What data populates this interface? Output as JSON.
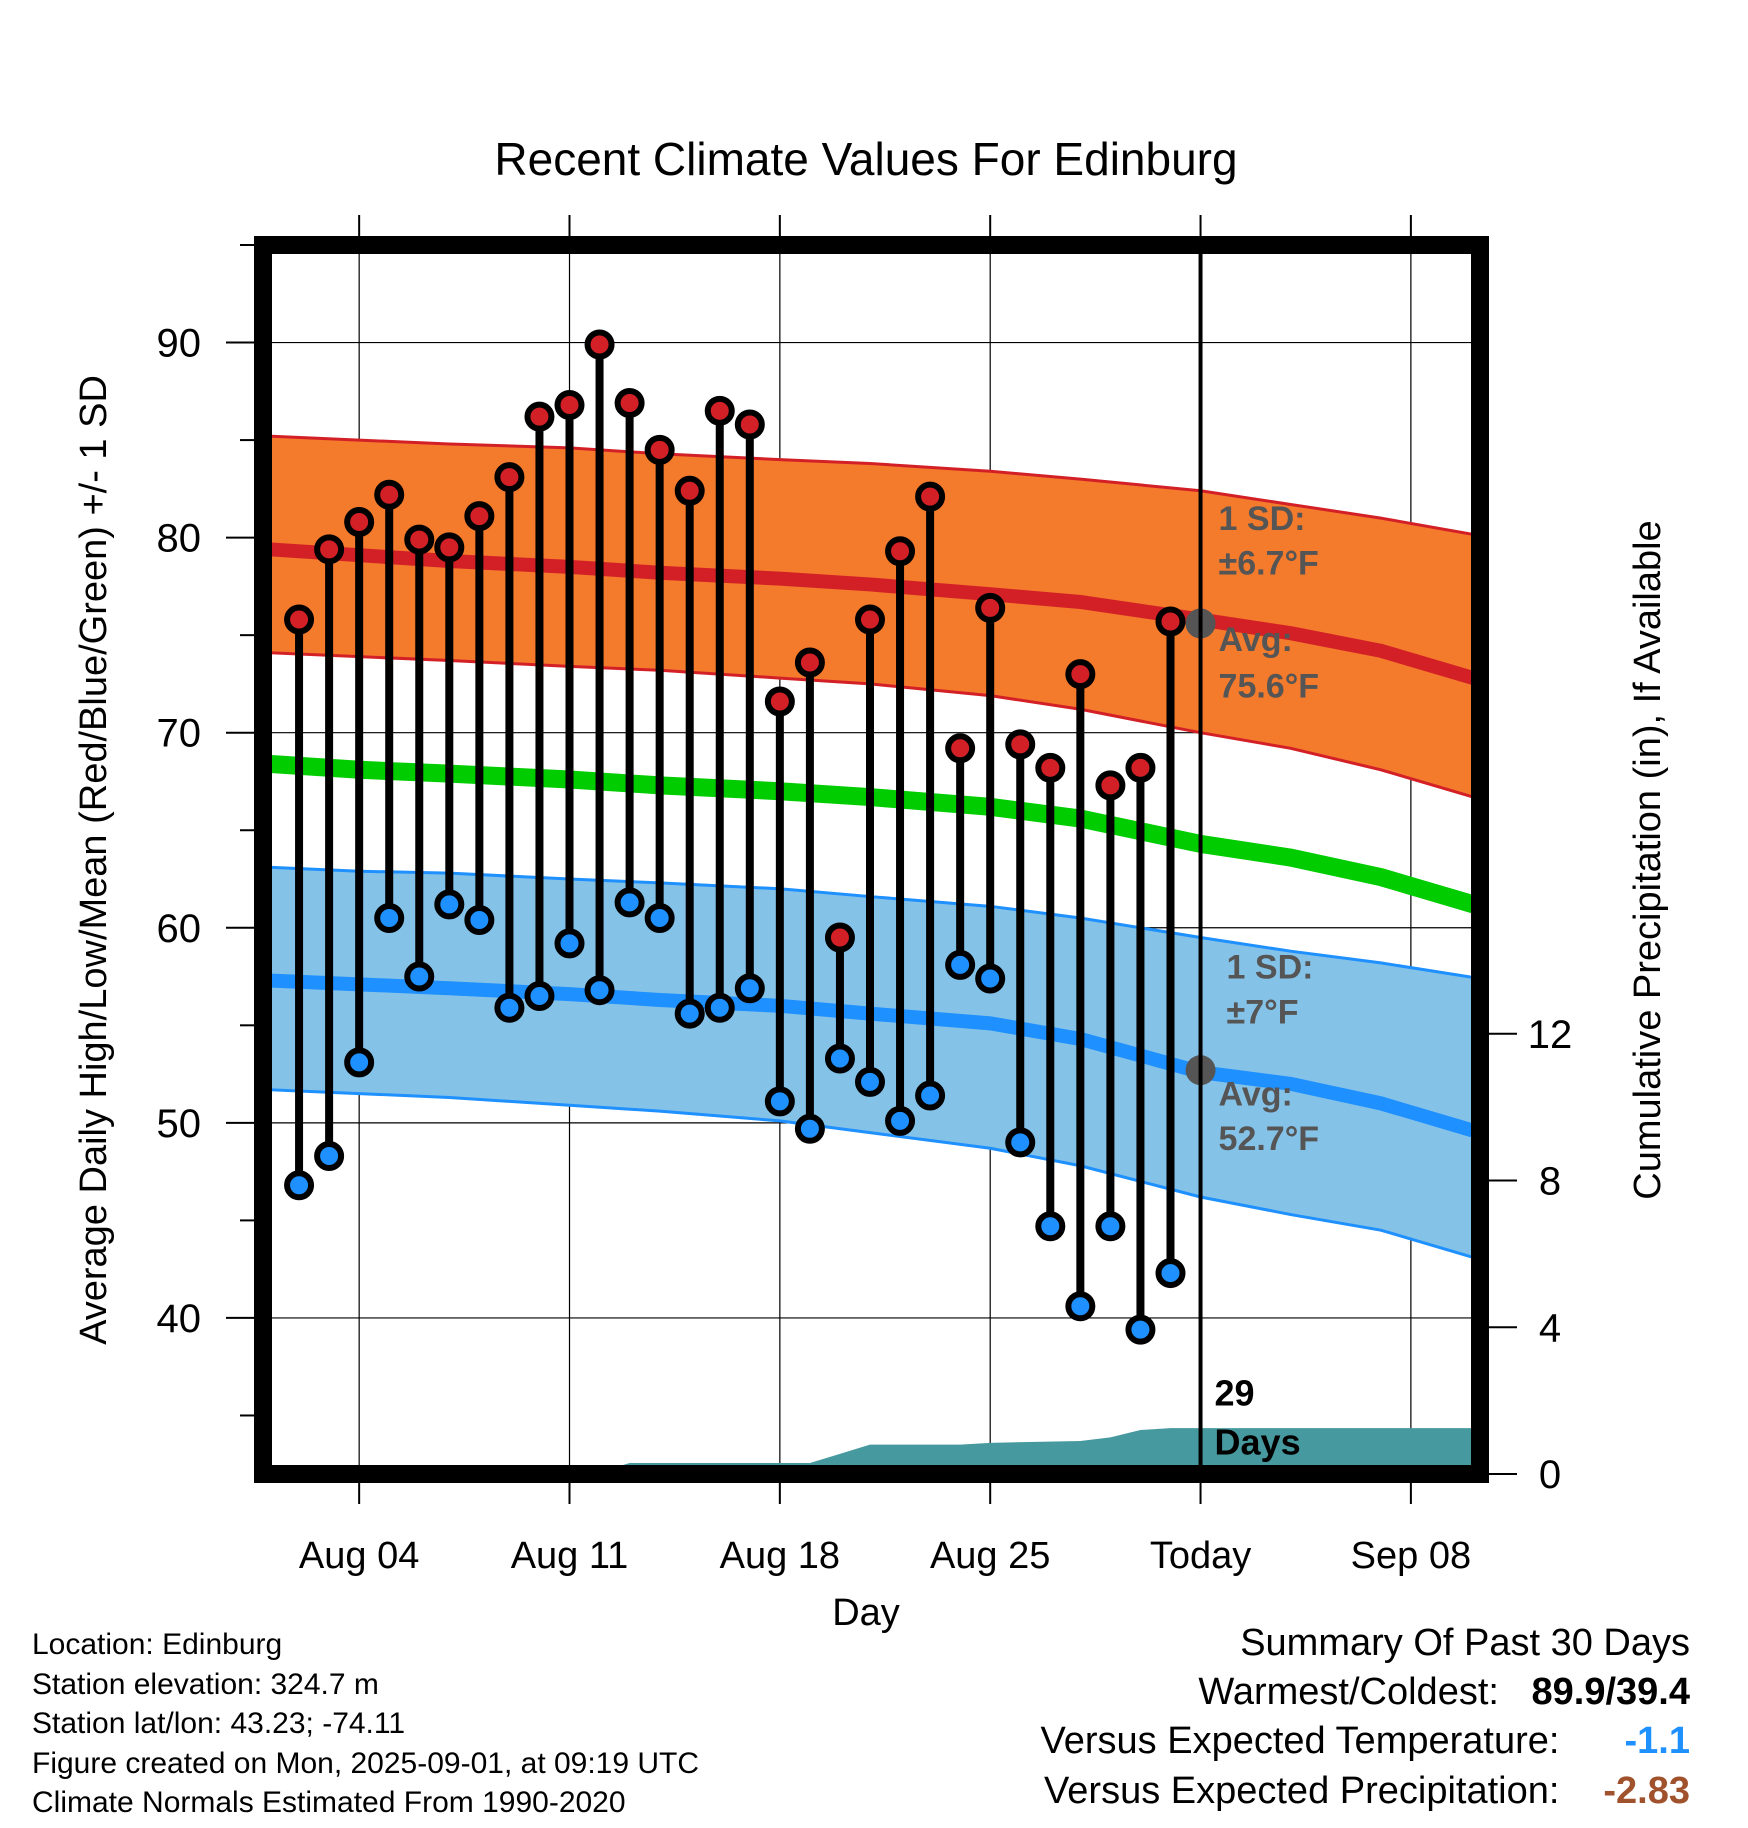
{
  "chart_data": {
    "type": "line",
    "title": "Recent Climate Values For Edinburg",
    "xlabel": "Day",
    "ylabel": "Average Daily High/Low/Mean (Red/Blue/Green) +/- 1 SD",
    "y2label": "Cumulative Precipitation (in), If Available",
    "ylim": [
      32,
      95
    ],
    "y2lim": [
      0,
      33.5
    ],
    "x_ticks": [
      {
        "label": "Aug 04",
        "day": 4
      },
      {
        "label": "Aug 11",
        "day": 11
      },
      {
        "label": "Aug 18",
        "day": 18
      },
      {
        "label": "Aug 25",
        "day": 25
      },
      {
        "label": "Today",
        "day": 32
      },
      {
        "label": "Sep 08",
        "day": 39
      }
    ],
    "xlim": [
      0.8,
      41.3
    ],
    "y_ticks": [
      40,
      50,
      60,
      70,
      80,
      90
    ],
    "y2_ticks": [
      0,
      4,
      8,
      12
    ],
    "today_day": 32,
    "days_label_count": "29",
    "days_label_word": "Days",
    "observed": {
      "days": [
        2,
        3,
        4,
        5,
        6,
        7,
        8,
        9,
        10,
        11,
        12,
        13,
        14,
        15,
        16,
        17,
        18,
        19,
        20,
        21,
        22,
        23,
        24,
        25,
        26,
        27,
        28,
        29,
        30,
        31
      ],
      "high": [
        75.8,
        79.4,
        80.8,
        82.2,
        79.9,
        79.5,
        81.1,
        83.1,
        86.2,
        86.8,
        89.9,
        86.9,
        84.5,
        82.4,
        86.5,
        85.8,
        71.6,
        73.6,
        59.5,
        75.8,
        79.3,
        82.1,
        69.2,
        76.4,
        69.4,
        68.2,
        73.0,
        67.3,
        68.2,
        75.7
      ],
      "low": [
        46.8,
        48.3,
        53.1,
        60.5,
        57.5,
        61.2,
        60.4,
        55.9,
        56.5,
        59.2,
        56.8,
        61.3,
        60.5,
        55.6,
        55.9,
        56.9,
        51.1,
        49.7,
        53.3,
        52.1,
        50.1,
        51.4,
        58.1,
        57.4,
        49.0,
        44.7,
        40.6,
        44.7,
        39.4,
        42.3
      ]
    },
    "normals": {
      "days": [
        1,
        4,
        7,
        11,
        14,
        18,
        21,
        25,
        28,
        32,
        35,
        38,
        41.3
      ],
      "high_mean": [
        79.4,
        79.1,
        78.8,
        78.5,
        78.2,
        77.9,
        77.6,
        77.1,
        76.7,
        75.8,
        75.1,
        74.2,
        72.7
      ],
      "high_upper": [
        85.2,
        85.0,
        84.8,
        84.6,
        84.3,
        84.0,
        83.8,
        83.4,
        83.0,
        82.4,
        81.7,
        81.0,
        80.1
      ],
      "high_lower": [
        74.1,
        73.9,
        73.7,
        73.4,
        73.2,
        72.8,
        72.5,
        71.9,
        71.2,
        70.0,
        69.2,
        68.1,
        66.6
      ],
      "mean": [
        68.4,
        68.1,
        67.9,
        67.6,
        67.3,
        67.0,
        66.7,
        66.2,
        65.6,
        64.3,
        63.6,
        62.6,
        61.1
      ],
      "low_mean": [
        57.3,
        57.1,
        56.9,
        56.6,
        56.3,
        56.0,
        55.6,
        55.1,
        54.3,
        52.6,
        52.0,
        51.0,
        49.5
      ],
      "low_upper": [
        63.1,
        62.9,
        62.8,
        62.5,
        62.3,
        62.0,
        61.6,
        61.1,
        60.5,
        59.5,
        58.8,
        58.2,
        57.4
      ],
      "low_lower": [
        51.7,
        51.5,
        51.3,
        50.9,
        50.6,
        50.1,
        49.5,
        48.7,
        47.8,
        46.2,
        45.3,
        44.5,
        43.0
      ]
    },
    "precip_cumulative": {
      "days": [
        1,
        11,
        12,
        13,
        19,
        20,
        21,
        24,
        25,
        28,
        29,
        30,
        31,
        41.3
      ],
      "inches": [
        0,
        0,
        0.05,
        0.3,
        0.3,
        0.55,
        0.8,
        0.8,
        0.85,
        0.9,
        1.0,
        1.2,
        1.25,
        1.25
      ]
    },
    "annotations": {
      "high_sd_label": "1 SD:",
      "high_sd_value": "±6.7°F",
      "high_avg_label": "Avg:",
      "high_avg_value": "75.6°F",
      "low_sd_label": "1 SD:",
      "low_sd_value": "±7°F",
      "low_avg_label": "Avg:",
      "low_avg_value": "52.7°F",
      "high_avg_marker": 75.6,
      "low_avg_marker": 52.7
    },
    "colors": {
      "high_band": "#f47a2c",
      "high_line": "#d32027",
      "mean_line": "#00cc00",
      "low_band": "#85c2e8",
      "low_line": "#1e90ff",
      "high_marker": "#d32027",
      "low_marker": "#1e90ff",
      "precip": "#46999e",
      "annotation": "#555555"
    }
  },
  "footer": {
    "location": "Location: Edinburg",
    "elevation": "Station elevation: 324.7 m",
    "latlon": "Station lat/lon: 43.23; -74.11",
    "created": "Figure created on Mon, 2025-09-01, at 09:19 UTC",
    "normals": "Climate Normals Estimated From 1990-2020"
  },
  "summary": {
    "title": "Summary Of Past 30 Days",
    "warm_cold_label": "Warmest/Coldest:",
    "warm_cold_value": "89.9/39.4",
    "temp_label": "Versus Expected Temperature:",
    "temp_value": "-1.1",
    "precip_label": "Versus Expected Precipitation:",
    "precip_value": "-2.83",
    "temp_color": "#1e90ff",
    "precip_color": "#a0522d"
  }
}
